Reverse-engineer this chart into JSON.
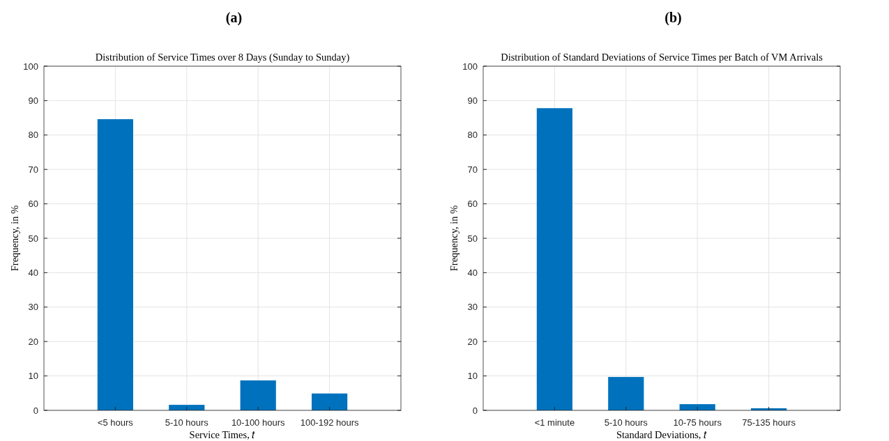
{
  "chart_data": [
    {
      "type": "bar",
      "title": "(a)",
      "subtitle": "Distribution of Service Times over 8 Days (Sunday to Sunday)",
      "xlabel": "Service Times, 𝑡",
      "ylabel": "Frequency, in %",
      "categories": [
        "<5 hours",
        "5-10 hours",
        "10-100 hours",
        "100-192 hours"
      ],
      "values": [
        84.6,
        1.6,
        8.7,
        4.9
      ],
      "color": "#0072bd",
      "ylim": [
        0,
        100
      ],
      "yticks": [
        0,
        10,
        20,
        30,
        40,
        50,
        60,
        70,
        80,
        90,
        100
      ],
      "grid": true
    },
    {
      "type": "bar",
      "title": "(b)",
      "subtitle": "Distribution of Standard Deviations of Service Times per Batch of VM Arrivals",
      "xlabel": "Standard Deviations, 𝑡",
      "ylabel": "Frequency, in %",
      "categories": [
        "<1 minute",
        "5-10 hours",
        "10-75 hours",
        "75-135 hours"
      ],
      "values": [
        87.8,
        9.7,
        1.8,
        0.6
      ],
      "color": "#0072bd",
      "ylim": [
        0,
        100
      ],
      "yticks": [
        0,
        10,
        20,
        30,
        40,
        50,
        60,
        70,
        80,
        90,
        100
      ],
      "grid": true
    }
  ]
}
